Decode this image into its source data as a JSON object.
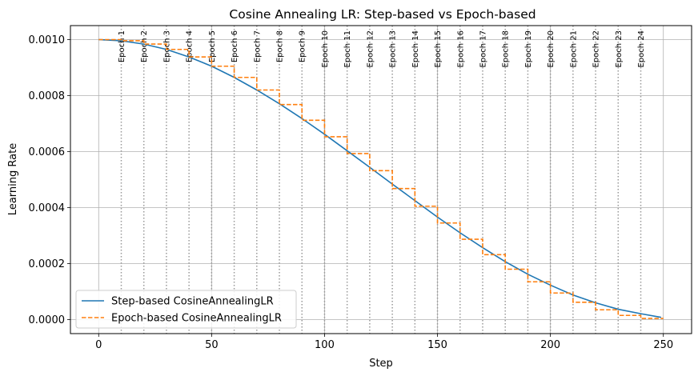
{
  "chart_data": {
    "type": "line",
    "title": "Cosine Annealing LR: Step-based vs Epoch-based",
    "xlabel": "Step",
    "ylabel": "Learning Rate",
    "xlim": [
      -12.5,
      262.5
    ],
    "ylim": [
      -5e-05,
      0.00105
    ],
    "xticks": [
      0,
      50,
      100,
      150,
      200,
      250
    ],
    "xtick_labels": [
      "0",
      "50",
      "100",
      "150",
      "200",
      "250"
    ],
    "yticks": [
      0,
      0.0002,
      0.0004,
      0.0006,
      0.0008,
      0.001
    ],
    "ytick_labels": [
      "0.0000",
      "0.0002",
      "0.0004",
      "0.0006",
      "0.0008",
      "0.0010"
    ],
    "grid": true,
    "legend_position": "lower-left",
    "series": [
      {
        "name": "Step-based CosineAnnealingLR",
        "style": "solid",
        "color": "#1f77b4",
        "x": [
          0,
          10,
          20,
          30,
          40,
          50,
          60,
          70,
          80,
          90,
          100,
          110,
          120,
          130,
          140,
          150,
          160,
          170,
          180,
          190,
          200,
          210,
          220,
          230,
          240,
          249
        ],
        "values": [
          0.001,
          0.000996,
          0.000984,
          0.000965,
          0.000938,
          0.000905,
          0.000865,
          0.00082,
          0.000771,
          0.000718,
          0.000662,
          0.000603,
          0.000544,
          0.000484,
          0.000425,
          0.000366,
          0.00031,
          0.000257,
          0.000207,
          0.000162,
          0.000123,
          8.8e-05,
          6e-05,
          3.7e-05,
          2.1e-05,
          8e-06
        ]
      },
      {
        "name": "Epoch-based CosineAnnealingLR",
        "style": "dashed",
        "color": "#ff7f0e",
        "step_width": 10,
        "x": [
          0,
          10,
          20,
          30,
          40,
          50,
          60,
          70,
          80,
          90,
          100,
          110,
          120,
          130,
          140,
          150,
          160,
          170,
          180,
          190,
          200,
          210,
          220,
          230,
          240
        ],
        "values": [
          0.001,
          0.000996,
          0.000984,
          0.000965,
          0.000938,
          0.000905,
          0.000865,
          0.00082,
          0.000768,
          0.000712,
          0.000653,
          0.000593,
          0.000532,
          0.000468,
          0.000405,
          0.000345,
          0.000287,
          0.000232,
          0.00018,
          0.000135,
          9.5e-05,
          6.2e-05,
          3.5e-05,
          1.5e-05,
          4e-06
        ]
      }
    ],
    "epoch_markers": {
      "positions": [
        10,
        20,
        30,
        40,
        50,
        60,
        70,
        80,
        90,
        100,
        110,
        120,
        130,
        140,
        150,
        160,
        170,
        180,
        190,
        200,
        210,
        220,
        230,
        240
      ],
      "labels": [
        "Epoch 1",
        "Epoch 2",
        "Epoch 3",
        "Epoch 4",
        "Epoch 5",
        "Epoch 6",
        "Epoch 7",
        "Epoch 8",
        "Epoch 9",
        "Epoch 10",
        "Epoch 11",
        "Epoch 12",
        "Epoch 13",
        "Epoch 14",
        "Epoch 15",
        "Epoch 16",
        "Epoch 17",
        "Epoch 18",
        "Epoch 19",
        "Epoch 20",
        "Epoch 21",
        "Epoch 22",
        "Epoch 23",
        "Epoch 24"
      ],
      "style": "dotted",
      "color": "#999999"
    }
  }
}
